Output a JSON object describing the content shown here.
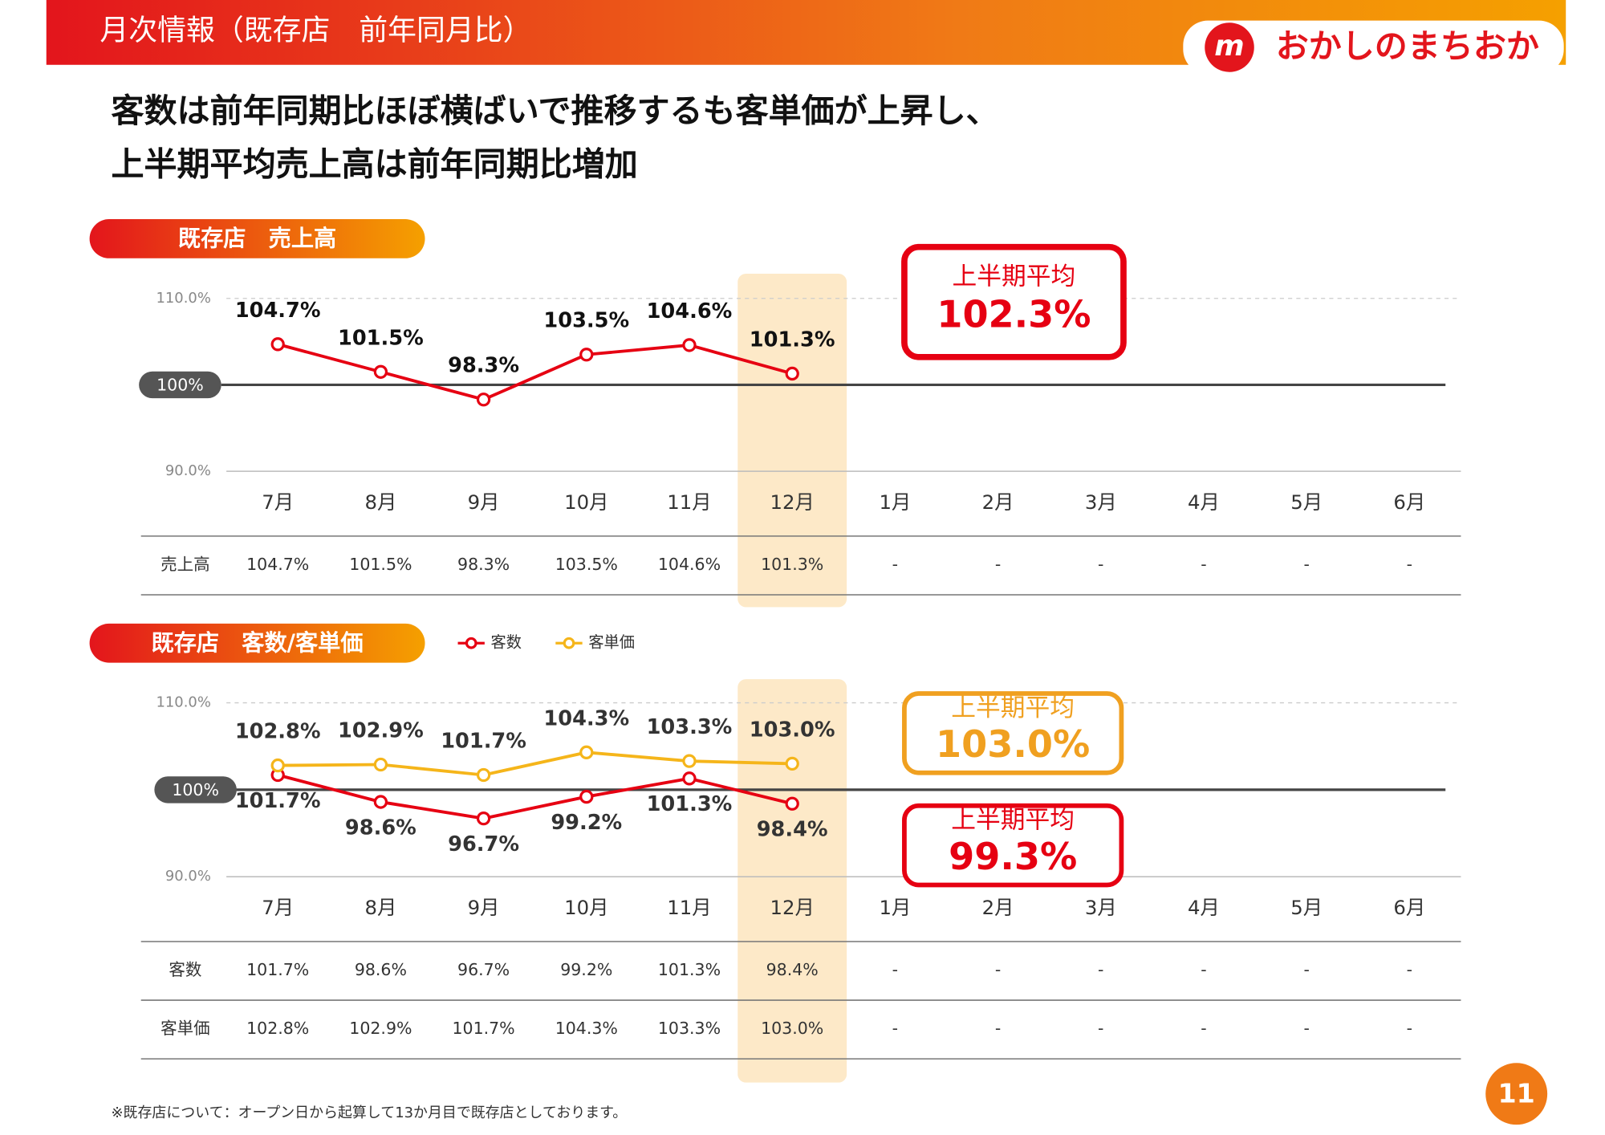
{
  "header": {
    "title": "月次情報（既存店　前年同月比）",
    "logo": "おかしのまちおか"
  },
  "headline": [
    "客数は前年同期比ほぼ横ばいで推移するも客単価が上昇し、",
    "上半期平均売上高は前年同期比増加"
  ],
  "chart_data": [
    {
      "type": "line",
      "title": "既存店　売上高",
      "categories": [
        "7月",
        "8月",
        "9月",
        "10月",
        "11月",
        "12月",
        "1月",
        "2月",
        "3月",
        "4月",
        "5月",
        "6月"
      ],
      "highlight": "12月",
      "ylim": [
        90,
        110
      ],
      "yticks": [
        {
          "value": 90,
          "label": "90.0%"
        },
        {
          "value": 110,
          "label": "110.0%"
        }
      ],
      "reference_line": {
        "value": 100,
        "label": "100%"
      },
      "series": [
        {
          "name": "売上高",
          "color": "#e60012",
          "label_position": "above",
          "values": [
            104.7,
            101.5,
            98.3,
            103.5,
            104.6,
            101.3,
            null,
            null,
            null,
            null,
            null,
            null
          ],
          "value_labels": [
            "104.7%",
            "101.5%",
            "98.3%",
            "103.5%",
            "104.6%",
            "101.3%",
            null,
            null,
            null,
            null,
            null,
            null
          ]
        }
      ],
      "annotations": [
        {
          "label": "上半期平均",
          "value": 102.3,
          "value_label": "102.3%",
          "color": "#e60012"
        }
      ]
    },
    {
      "type": "line",
      "title": "既存店　客数/客単価",
      "legend": "top",
      "categories": [
        "7月",
        "8月",
        "9月",
        "10月",
        "11月",
        "12月",
        "1月",
        "2月",
        "3月",
        "4月",
        "5月",
        "6月"
      ],
      "highlight": "12月",
      "ylim": [
        90,
        110
      ],
      "yticks": [
        {
          "value": 90,
          "label": "90.0%"
        },
        {
          "value": 110,
          "label": "110.0%"
        }
      ],
      "reference_line": {
        "value": 100,
        "label": "100%"
      },
      "series": [
        {
          "name": "客数",
          "color": "#e60012",
          "label_position": "below",
          "values": [
            101.7,
            98.6,
            96.7,
            99.2,
            101.3,
            98.4,
            null,
            null,
            null,
            null,
            null,
            null
          ],
          "value_labels": [
            "101.7%",
            "98.6%",
            "96.7%",
            "99.2%",
            "101.3%",
            "98.4%",
            null,
            null,
            null,
            null,
            null,
            null
          ]
        },
        {
          "name": "客単価",
          "color": "#f5b51a",
          "label_position": "above",
          "values": [
            102.8,
            102.9,
            101.7,
            104.3,
            103.3,
            103.0,
            null,
            null,
            null,
            null,
            null,
            null
          ],
          "value_labels": [
            "102.8%",
            "102.9%",
            "101.7%",
            "104.3%",
            "103.3%",
            "103.0%",
            null,
            null,
            null,
            null,
            null,
            null
          ]
        }
      ],
      "annotations": [
        {
          "label": "上半期平均",
          "value": 103.0,
          "value_label": "103.0%",
          "color": "#f0a020"
        },
        {
          "label": "上半期平均",
          "value": 99.3,
          "value_label": "99.3%",
          "color": "#e60012"
        }
      ]
    }
  ],
  "tables": [
    {
      "rows": [
        [
          "売上高",
          "104.7%",
          "101.5%",
          "98.3%",
          "103.5%",
          "104.6%",
          "101.3%",
          "-",
          "-",
          "-",
          "-",
          "-",
          "-"
        ]
      ]
    },
    {
      "rows": [
        [
          "客数",
          "101.7%",
          "98.6%",
          "96.7%",
          "99.2%",
          "101.3%",
          "98.4%",
          "-",
          "-",
          "-",
          "-",
          "-",
          "-"
        ],
        [
          "客単価",
          "102.8%",
          "102.9%",
          "101.7%",
          "104.3%",
          "103.3%",
          "103.0%",
          "-",
          "-",
          "-",
          "-",
          "-",
          "-"
        ]
      ]
    }
  ],
  "footnote": "※既存店について：オープン日から起算して13か月目で既存店としております。",
  "page_number": "11"
}
